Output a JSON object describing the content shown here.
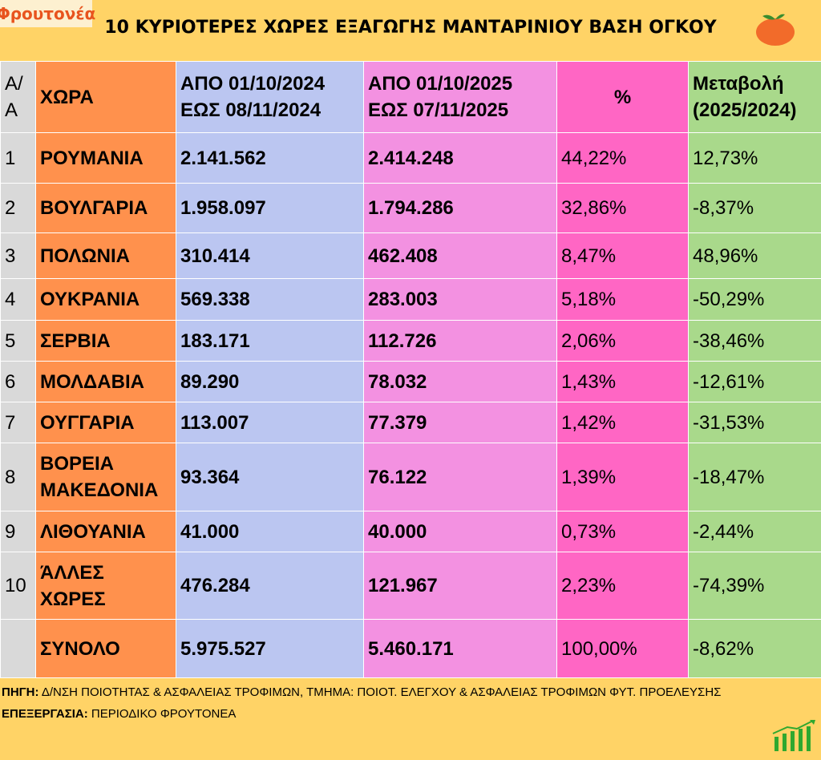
{
  "logo": {
    "text": "Φρουτονέα"
  },
  "title": "10 ΚΥΡΙΟΤΕΡΕΣ ΧΩΡΕΣ ΕΞΑΓΩΓΗΣ ΜΑΝΤΑΡΙΝΙΟΥ ΒΑΣΗ ΟΓΚΟΥ",
  "chart_data": {
    "type": "table",
    "title": "10 ΚΥΡΙΟΤΕΡΕΣ ΧΩΡΕΣ ΕΞΑΓΩΓΗΣ ΜΑΝΤΑΡΙΝΙΟΥ ΒΑΣΗ ΟΓΚΟΥ",
    "headers": {
      "aa": "Α/Α",
      "country": "ΧΩΡΑ",
      "p1a": "ΑΠΟ 01/10/2024",
      "p1b": "ΕΩΣ 08/11/2024",
      "p2a": "ΑΠΟ 01/10/2025",
      "p2b": "ΕΩΣ 07/11/2025",
      "pct": "%",
      "chg1": "Μεταβολή",
      "chg2": "(2025/2024)"
    },
    "rows": [
      {
        "aa": "1",
        "country": "ΡΟΥΜΑΝΙΑ",
        "v2024": "2.141.562",
        "v2025": "2.414.248",
        "pct": "44,22%",
        "change": "12,73%"
      },
      {
        "aa": "2",
        "country": "ΒΟΥΛΓΑΡΙΑ",
        "v2024": "1.958.097",
        "v2025": "1.794.286",
        "pct": "32,86%",
        "change": "-8,37%"
      },
      {
        "aa": "3",
        "country": "ΠΟΛΩΝΙΑ",
        "v2024": "310.414",
        "v2025": "462.408",
        "pct": "8,47%",
        "change": "48,96%"
      },
      {
        "aa": "4",
        "country": "ΟΥΚΡΑΝΙΑ",
        "v2024": "569.338",
        "v2025": "283.003",
        "pct": "5,18%",
        "change": "-50,29%"
      },
      {
        "aa": "5",
        "country": "ΣΕΡΒΙΑ",
        "v2024": "183.171",
        "v2025": "112.726",
        "pct": "2,06%",
        "change": "-38,46%"
      },
      {
        "aa": "6",
        "country": "ΜΟΛΔΑΒΙΑ",
        "v2024": "89.290",
        "v2025": "78.032",
        "pct": "1,43%",
        "change": "-12,61%"
      },
      {
        "aa": "7",
        "country": "ΟΥΓΓΑΡΙΑ",
        "v2024": "113.007",
        "v2025": "77.379",
        "pct": "1,42%",
        "change": "-31,53%"
      },
      {
        "aa": "8",
        "country": "ΒΟΡΕΙΑ ΜΑΚΕΔΟΝΙΑ",
        "v2024": "93.364",
        "v2025": "76.122",
        "pct": "1,39%",
        "change": "-18,47%"
      },
      {
        "aa": "9",
        "country": "ΛΙΘΟΥΑΝΙΑ",
        "v2024": "41.000",
        "v2025": "40.000",
        "pct": "0,73%",
        "change": "-2,44%"
      },
      {
        "aa": "10",
        "country": "ΆΛΛΕΣ ΧΩΡΕΣ",
        "v2024": "476.284",
        "v2025": "121.967",
        "pct": "2,23%",
        "change": "-74,39%"
      },
      {
        "aa": "",
        "country": "ΣΥΝΟΛΟ",
        "v2024": "5.975.527",
        "v2025": "5.460.171",
        "pct": "100,00%",
        "change": "-8,62%"
      }
    ]
  },
  "footer": {
    "source_label": "ΠΗΓΗ:",
    "source_text": "Δ/ΝΣΗ ΠΟΙΟΤΗΤΑΣ & ΑΣΦΑΛΕΙΑΣ ΤΡΟΦΙΜΩΝ, ΤΜΗΜΑ: ΠΟΙΟΤ. ΕΛΕΓΧΟΥ & ΑΣΦΑΛΕΙΑΣ ΤΡΟΦΙΜΩΝ ΦΥΤ. ΠΡΟΕΛΕΥΣΗΣ",
    "processing_label": "ΕΠΕΞΕΡΓΑΣΙΑ:",
    "processing_text": "ΠΕΡΙΟΔΙΚΟ ΦΡΟΥΤΟΝΕΑ"
  }
}
